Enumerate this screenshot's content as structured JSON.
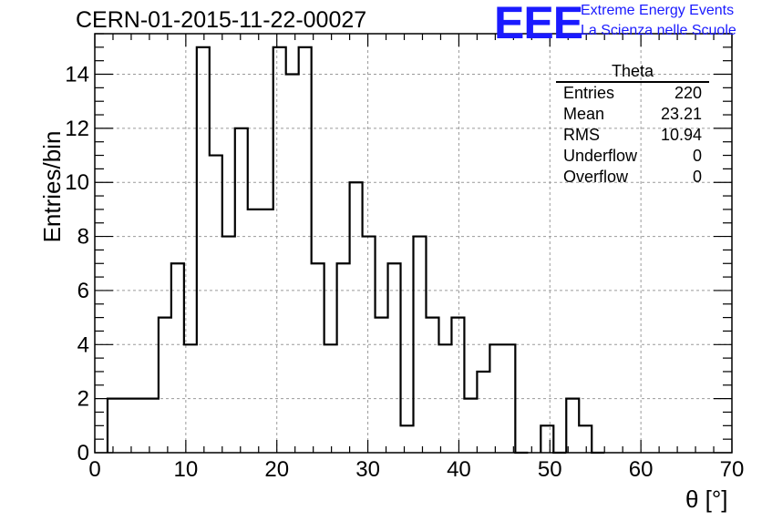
{
  "header": {
    "run_title": "CERN-01-2015-11-22-00027",
    "logo_text": "EEE",
    "logo_line1": "Extreme Energy Events",
    "logo_line2": "La Scienza nelle Scuole",
    "logo_color": "#1a1aff"
  },
  "stats_box": {
    "title": "Theta",
    "rows": [
      {
        "label": "Entries",
        "value": "220"
      },
      {
        "label": "Mean",
        "value": "23.21"
      },
      {
        "label": "RMS",
        "value": "10.94"
      },
      {
        "label": "Underflow",
        "value": "0"
      },
      {
        "label": "Overflow",
        "value": "0"
      }
    ]
  },
  "chart_data": {
    "type": "histogram",
    "title": "CERN-01-2015-11-22-00027",
    "xlabel": "θ [°]",
    "ylabel": "Entries/bin",
    "xlim": [
      0,
      70
    ],
    "ylim": [
      0,
      15.5
    ],
    "bin_width": 1.4,
    "bin_start": 0,
    "xticks": [
      0,
      10,
      20,
      30,
      40,
      50,
      60,
      70
    ],
    "yticks": [
      0,
      2,
      4,
      6,
      8,
      10,
      12,
      14
    ],
    "grid": true,
    "line_color": "#000000",
    "values": [
      0,
      2,
      2,
      2,
      2,
      5,
      7,
      4,
      15,
      11,
      8,
      12,
      9,
      9,
      15,
      14,
      15,
      7,
      4,
      7,
      10,
      8,
      5,
      7,
      1,
      8,
      5,
      4,
      5,
      2,
      3,
      4,
      4,
      0,
      0,
      1,
      0,
      2,
      1,
      0,
      0,
      0,
      0,
      0,
      0,
      0,
      0,
      0,
      0,
      0
    ]
  }
}
